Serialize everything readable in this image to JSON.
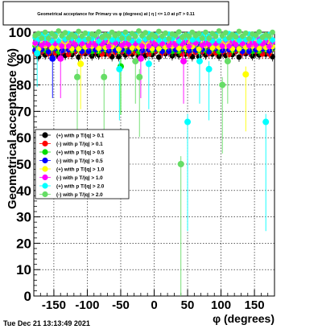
{
  "chart_data": {
    "type": "scatter",
    "title": "Geometrical acceptance for Primary vs φ (degrees) at | η | <= 1.0 at pT > 0.11",
    "xlabel": "φ (degrees)",
    "ylabel": "Geometrical acceptance (%)",
    "xlim": [
      -180,
      180
    ],
    "ylim": [
      0,
      100
    ],
    "xticks": [
      -150,
      -100,
      -50,
      0,
      50,
      100,
      150
    ],
    "yticks": [
      0,
      10,
      20,
      30,
      40,
      50,
      60,
      70,
      80,
      90,
      100
    ],
    "grid": true,
    "legend_position": "left-middle",
    "timestamp": "Tue Dec 21 13:13:49 2021",
    "series": [
      {
        "name": "(+) with p T/|q| > 0.1",
        "color": "#000000",
        "level": 92,
        "outliers": []
      },
      {
        "name": "(-) with p T/|q| > 0.1",
        "color": "#ff0000",
        "level": 93,
        "outliers": []
      },
      {
        "name": "(+) with p T/|q| > 0.5",
        "color": "#00dd00",
        "level": 94,
        "outliers": [
          [
            -50,
            87
          ]
        ]
      },
      {
        "name": "(-) with p T/|q| > 0.5",
        "color": "#0000ff",
        "level": 94,
        "outliers": [
          [
            -152,
            90
          ]
        ]
      },
      {
        "name": "(+) with p T/|q| > 1.0",
        "color": "#ffff00",
        "level": 95,
        "outliers": [
          [
            -110,
            88
          ],
          [
            137,
            84
          ]
        ]
      },
      {
        "name": "(-) with p T/|q| > 1.0",
        "color": "#ff00ff",
        "level": 96,
        "outliers": [
          [
            -140,
            90
          ],
          [
            -20,
            90
          ],
          [
            44,
            89
          ]
        ]
      },
      {
        "name": "(+) with p T/|q| > 2.0",
        "color": "#00ffff",
        "level": 98,
        "outliers": [
          [
            -175,
            92
          ],
          [
            -52,
            86
          ],
          [
            -8,
            88
          ],
          [
            50,
            66
          ],
          [
            68,
            89
          ],
          [
            82,
            86
          ],
          [
            167,
            66
          ]
        ]
      },
      {
        "name": "(-) with p T/|q| > 2.0",
        "color": "#66dd66",
        "level": 99,
        "outliers": [
          [
            -115,
            83
          ],
          [
            -75,
            83
          ],
          [
            -28,
            89
          ],
          [
            -22,
            83
          ],
          [
            40,
            50
          ],
          [
            102,
            80
          ],
          [
            110,
            89
          ]
        ]
      }
    ]
  }
}
